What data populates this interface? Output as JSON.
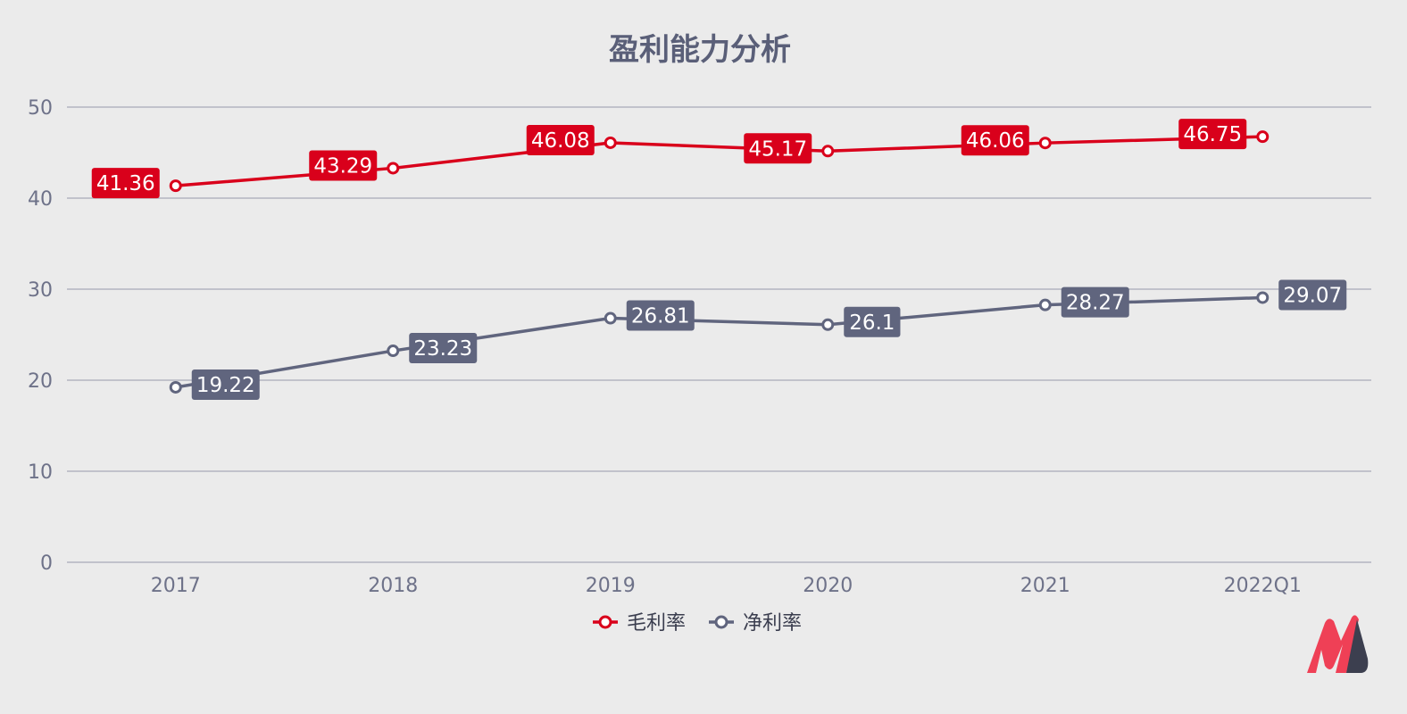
{
  "chart_data": {
    "type": "line",
    "title": "盈利能力分析",
    "categories": [
      "2017",
      "2018",
      "2019",
      "2020",
      "2021",
      "2022Q1"
    ],
    "ylim": [
      0,
      50
    ],
    "yticks": [
      "0",
      "10",
      "20",
      "30",
      "40",
      "50"
    ],
    "grid": true,
    "legend_position": "bottom-center",
    "series": [
      {
        "name": "毛利率",
        "color": "#d9001b",
        "values": [
          41.36,
          43.29,
          46.08,
          45.17,
          46.06,
          46.75
        ],
        "labels": [
          "41.36",
          "43.29",
          "46.08",
          "45.17",
          "46.06",
          "46.75"
        ],
        "label_side": "left"
      },
      {
        "name": "净利率",
        "color": "#60657e",
        "values": [
          19.22,
          23.23,
          26.81,
          26.1,
          28.27,
          29.07
        ],
        "labels": [
          "19.22",
          "23.23",
          "26.81",
          "26.1",
          "28.27",
          "29.07"
        ],
        "label_side": "right"
      }
    ]
  },
  "watermark": {
    "icon": "brand-logo-icon",
    "colors": [
      "#ef4056",
      "#3c3f4f"
    ]
  }
}
